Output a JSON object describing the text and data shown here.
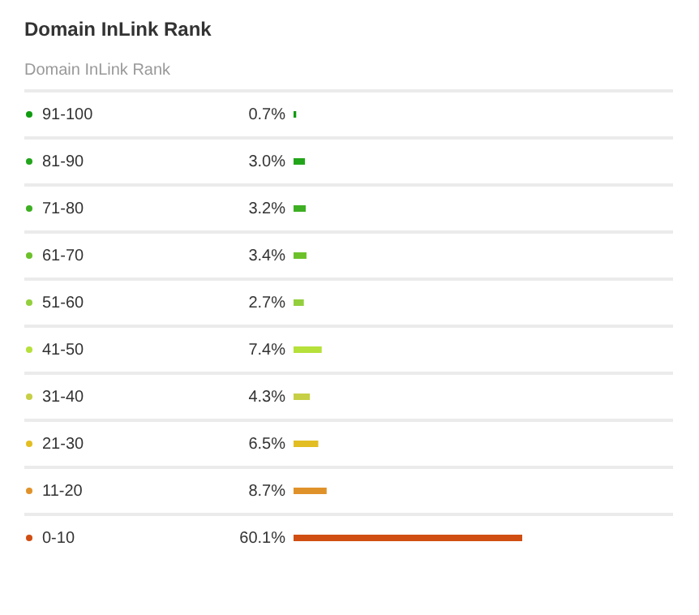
{
  "chart_data": {
    "type": "bar",
    "orientation": "horizontal",
    "title": "Domain InLink Rank",
    "subtitle": "Domain InLink Rank",
    "categories": [
      "91-100",
      "81-90",
      "71-80",
      "61-70",
      "51-60",
      "41-50",
      "31-40",
      "21-30",
      "11-20",
      "0-10"
    ],
    "values": [
      0.7,
      3.0,
      3.2,
      3.4,
      2.7,
      7.4,
      4.3,
      6.5,
      8.7,
      60.1
    ],
    "value_labels": [
      "0.7%",
      "3.0%",
      "3.2%",
      "3.4%",
      "2.7%",
      "7.4%",
      "4.3%",
      "6.5%",
      "8.7%",
      "60.1%"
    ],
    "colors": [
      "#109b10",
      "#22a51a",
      "#3daf22",
      "#6cc12a",
      "#93cf3c",
      "#b6e03a",
      "#c6cf45",
      "#e3be22",
      "#e0922a",
      "#d04e12"
    ],
    "grid": "y"
  }
}
